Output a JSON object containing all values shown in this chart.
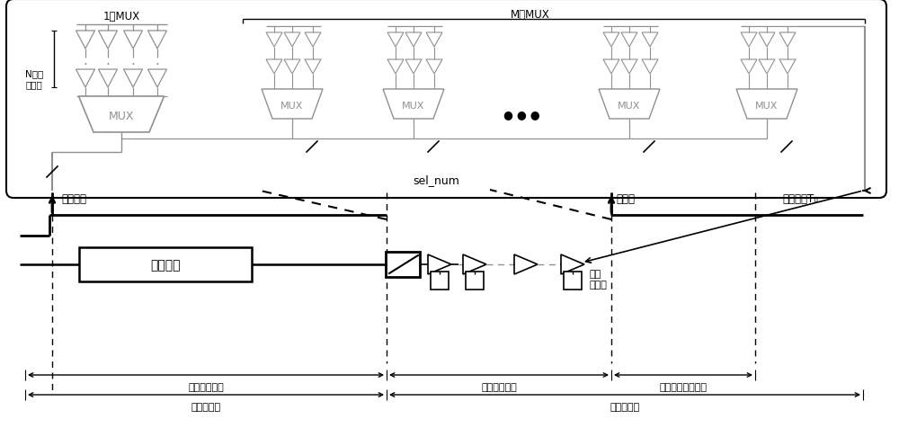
{
  "bg_color": "#ffffff",
  "line_color": "#000000",
  "gray_color": "#909090",
  "labels": {
    "N_delay": "N个延\n时单元",
    "one_mux": "1个MUX",
    "M_mux": "M个MUX",
    "sel_num": "sel_num",
    "ref_clk": "参考时钟",
    "copy_path": "复制路径",
    "threshold": "阈值位",
    "delay_unit": "延时单元T₀",
    "sampler": "采样\n触发器",
    "var_delay": "可变延时区域",
    "fixed_delay": "固定延时区域",
    "measure_delay": "测量辅助延时区域",
    "var_voltage": "可变电压域",
    "fixed_voltage": "固定电压域",
    "MUX": "MUX",
    "dots": "● ● ●"
  }
}
